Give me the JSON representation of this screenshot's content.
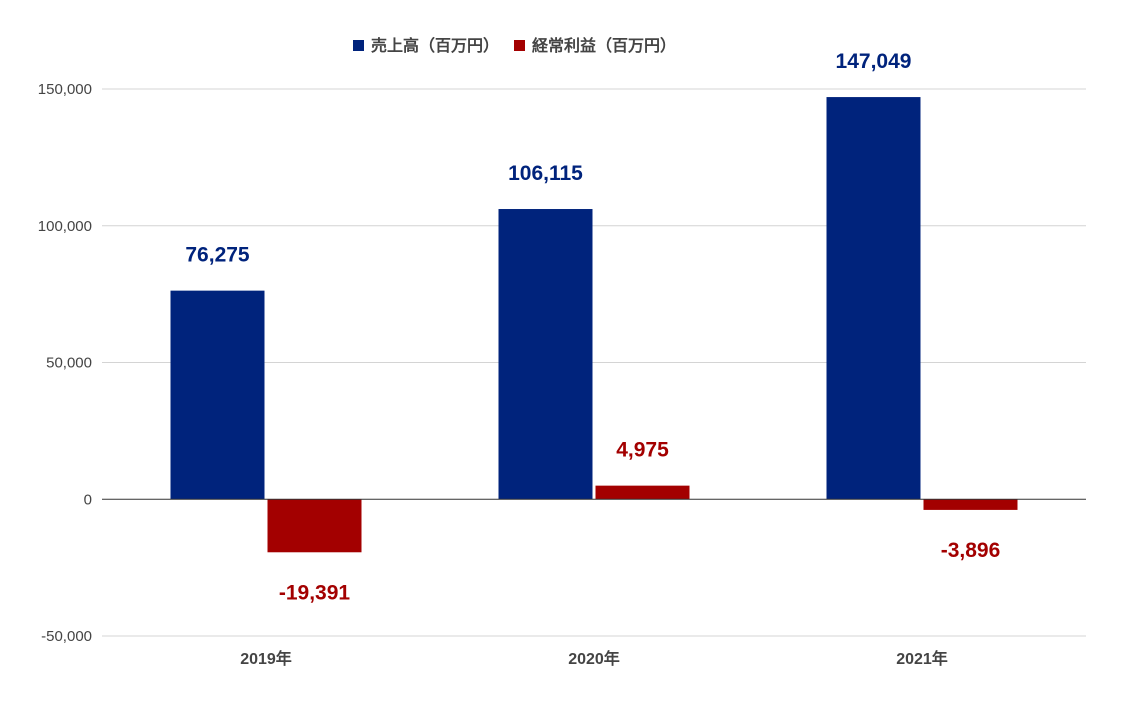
{
  "chart_data": {
    "type": "bar",
    "title": "",
    "xlabel": "",
    "ylabel": "",
    "categories": [
      "2019年",
      "2020年",
      "2021年"
    ],
    "series": [
      {
        "name": "売上高（百万円）",
        "color": "#00237c",
        "values": [
          76275,
          106115,
          147049
        ],
        "labels": [
          "76,275",
          "106,115",
          "147,049"
        ]
      },
      {
        "name": "経常利益（百万円）",
        "color": "#a30000",
        "values": [
          -19391,
          4975,
          -3896
        ],
        "labels": [
          "-19,391",
          "4,975",
          "-3,896"
        ]
      }
    ],
    "ylim": [
      -50000,
      150000
    ],
    "yticks": [
      -50000,
      0,
      50000,
      100000,
      150000
    ],
    "ytick_labels": [
      "-50,000",
      "0",
      "50,000",
      "100,000",
      "150,000"
    ],
    "grid": true,
    "legend_position": "top-center"
  }
}
